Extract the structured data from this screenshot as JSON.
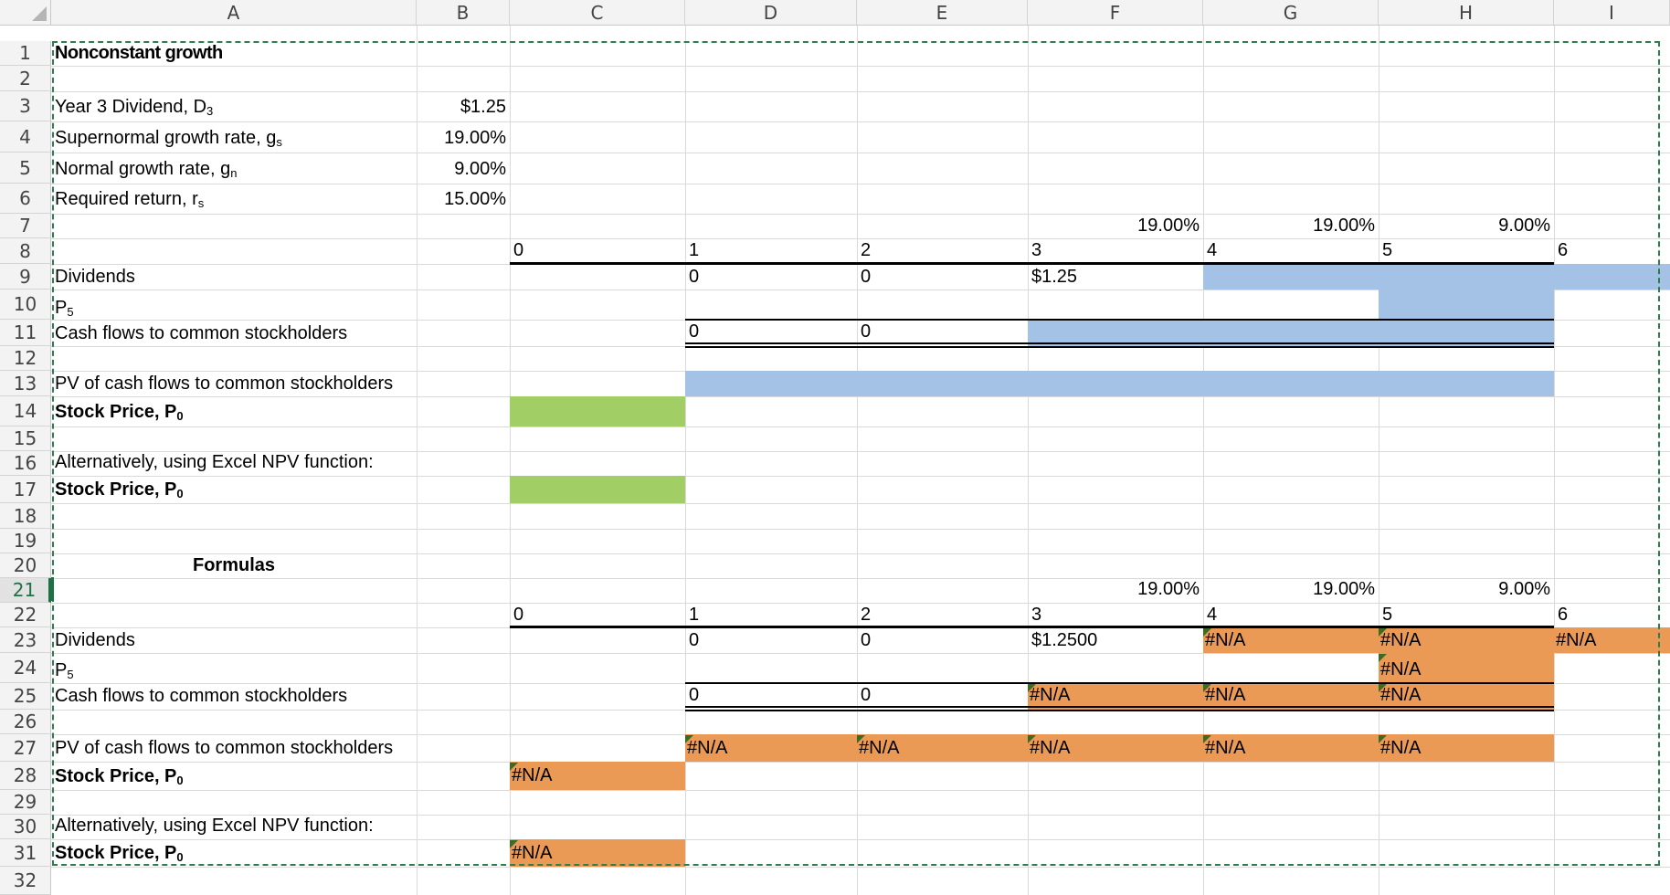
{
  "columns": [
    "A",
    "B",
    "C",
    "D",
    "E",
    "F",
    "G",
    "H",
    "I"
  ],
  "rows": [
    "1",
    "2",
    "3",
    "4",
    "5",
    "6",
    "7",
    "8",
    "9",
    "10",
    "11",
    "12",
    "13",
    "14",
    "15",
    "16",
    "17",
    "18",
    "19",
    "20",
    "21",
    "22",
    "23",
    "24",
    "25",
    "26",
    "27",
    "28",
    "29",
    "30",
    "31",
    "32"
  ],
  "active_row": "21",
  "title": "Nonconstant growth",
  "inputs": [
    {
      "label": "Year 3 Dividend, D",
      "sub": "3",
      "value": "$1.25"
    },
    {
      "label": "Supernormal growth rate, g",
      "sub": "s",
      "value": "19.00%"
    },
    {
      "label": "Normal growth rate, g",
      "sub": "n",
      "value": "9.00%"
    },
    {
      "label": "Required return, r",
      "sub": "s",
      "value": "15.00%"
    }
  ],
  "growth_rates": [
    "19.00%",
    "19.00%",
    "9.00%"
  ],
  "timeline": [
    "0",
    "1",
    "2",
    "3",
    "4",
    "5",
    "6"
  ],
  "labels": {
    "dividends": "Dividends",
    "p5": "P",
    "p5_sub": "5",
    "cash_flows": "Cash flows to common stockholders",
    "pv_cash_flows": "PV of cash flows to common stockholders",
    "stock_price": "Stock Price, P",
    "stock_price_sub": "0",
    "alternative": "Alternatively, using Excel NPV function:",
    "formulas": "Formulas"
  },
  "top_section": {
    "dividends": [
      "0",
      "0",
      "$1.25"
    ],
    "cash_flows": [
      "0",
      "0"
    ]
  },
  "formula_section": {
    "dividends": [
      "0",
      "0",
      "$1.2500",
      "#N/A",
      "#N/A",
      "#N/A"
    ],
    "p5": "#N/A",
    "cash_flows": [
      "0",
      "0",
      "#N/A",
      "#N/A",
      "#N/A"
    ],
    "pv_cash_flows": [
      "#N/A",
      "#N/A",
      "#N/A",
      "#N/A",
      "#N/A"
    ],
    "stock_price": "#N/A",
    "stock_price_npv": "#N/A"
  },
  "colors": {
    "input_blue": "#a4c2e6",
    "output_green": "#a2cf65",
    "error_orange": "#eb9a55",
    "selection_green": "#1e7145"
  }
}
